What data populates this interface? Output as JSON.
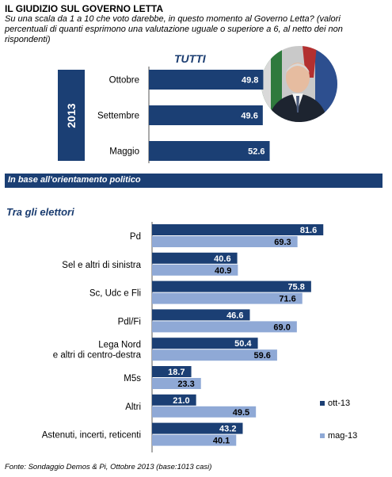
{
  "header": {
    "title": "IL GIUDIZIO  SUL GOVERNO LETTA",
    "question": "Su una scala da 1 a 10 che voto darebbe, in questo momento al Governo Letta? (valori percentuali di quanti esprimono una valutazione uguale o superiore a 6, al netto dei non rispondenti)"
  },
  "top": {
    "heading": "TUTTI",
    "year": "2013"
  },
  "banner": "In base all'orientamento politico",
  "subtitle": "Tra gli elettori",
  "source": "Fonte: Sondaggio Demos & Pi, Ottobre 2013 (base:1013 casi)",
  "colors": {
    "dark": "#1b3f74",
    "light": "#8fa9d6"
  },
  "chart_data": [
    {
      "type": "bar",
      "orientation": "horizontal",
      "title": "TUTTI",
      "categories": [
        "Ottobre",
        "Settembre",
        "Maggio"
      ],
      "values": [
        49.8,
        49.6,
        52.6
      ]
    },
    {
      "type": "bar",
      "orientation": "horizontal",
      "title": "Tra gli elettori",
      "legend_position": "right",
      "categories": [
        "Pd",
        "Sel e altri di sinistra",
        "Sc, Udc e Fli",
        "Pdl/Fi",
        "Lega Nord\ne altri di centro-destra",
        "M5s",
        "Altri",
        "Astenuti, incerti, reticenti"
      ],
      "series": [
        {
          "name": "ott-13",
          "values": [
            81.6,
            40.6,
            75.8,
            46.6,
            50.4,
            18.7,
            21.0,
            43.2
          ]
        },
        {
          "name": "mag-13",
          "values": [
            69.3,
            40.9,
            71.6,
            69.0,
            59.6,
            23.3,
            49.5,
            40.1
          ]
        }
      ]
    }
  ]
}
